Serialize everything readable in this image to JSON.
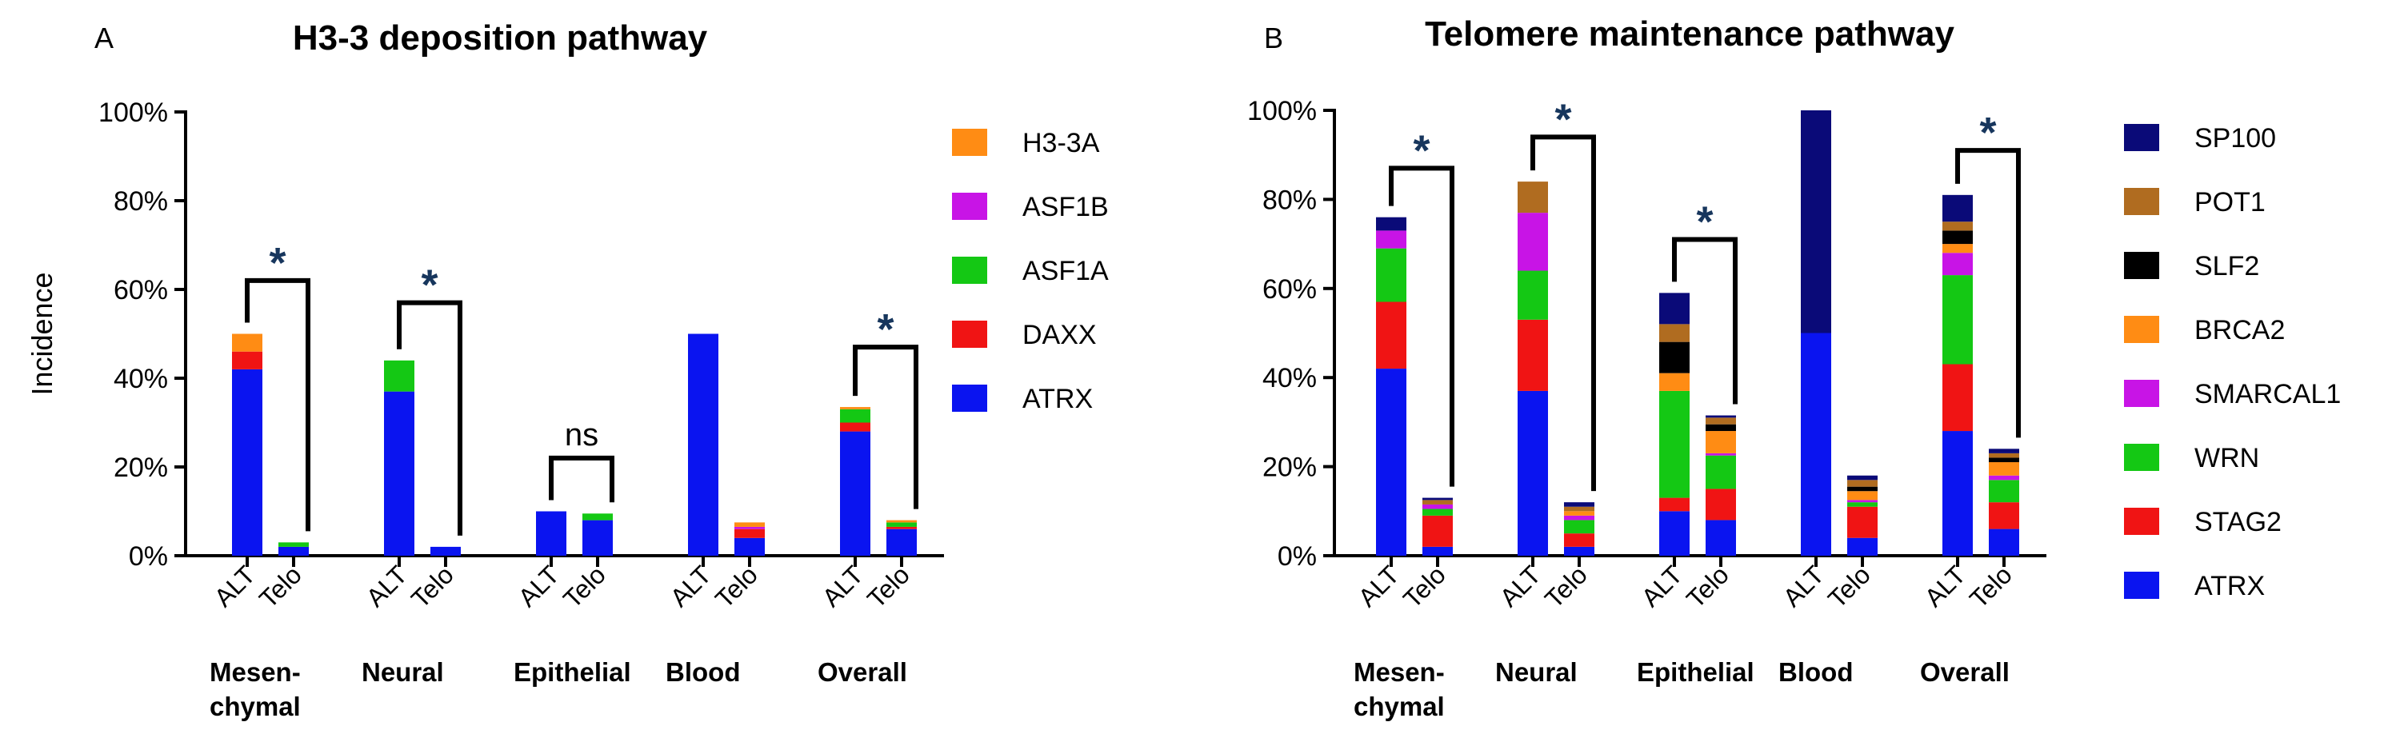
{
  "chart_data": [
    {
      "type": "bar",
      "stacked": true,
      "panel_letter": "A",
      "title": "H3-3 deposition pathway",
      "ylabel": "Incidence",
      "ylim": [
        0,
        100
      ],
      "yticks": [
        "0%",
        "20%",
        "40%",
        "60%",
        "80%",
        "100%"
      ],
      "bar_labels": [
        "ALT",
        "Telo"
      ],
      "groups": [
        "Mesen-",
        "Neural",
        "Epithelial",
        "Blood",
        "Overall"
      ],
      "group_second_line": [
        "chymal",
        "",
        "",
        "",
        ""
      ],
      "series": [
        {
          "name": "ATRX",
          "color": "#0a14f0",
          "values": [
            [
              42,
              2
            ],
            [
              37,
              2
            ],
            [
              10,
              8
            ],
            [
              50,
              4
            ],
            [
              28,
              6
            ]
          ]
        },
        {
          "name": "DAXX",
          "color": "#f01414",
          "values": [
            [
              4,
              0
            ],
            [
              0,
              0
            ],
            [
              0,
              0
            ],
            [
              0,
              2
            ],
            [
              2,
              0.5
            ]
          ]
        },
        {
          "name": "ASF1A",
          "color": "#14c814",
          "values": [
            [
              0,
              1
            ],
            [
              7,
              0
            ],
            [
              0,
              1.5
            ],
            [
              0,
              0
            ],
            [
              3,
              1
            ]
          ]
        },
        {
          "name": "ASF1B",
          "color": "#c814e6",
          "values": [
            [
              0,
              0
            ],
            [
              0,
              0
            ],
            [
              0,
              0
            ],
            [
              0,
              0.5
            ],
            [
              0,
              0
            ]
          ]
        },
        {
          "name": "H3-3A",
          "color": "#ff8c14",
          "values": [
            [
              4,
              0
            ],
            [
              0,
              0
            ],
            [
              0,
              0
            ],
            [
              0,
              1
            ],
            [
              0.5,
              0.5
            ]
          ]
        }
      ],
      "annotations": [
        {
          "group": 0,
          "label": "*",
          "top": 62
        },
        {
          "group": 1,
          "label": "*",
          "top": 57
        },
        {
          "group": 2,
          "label": "ns",
          "top": 22
        },
        {
          "group": 4,
          "label": "*",
          "top": 47
        }
      ]
    },
    {
      "type": "bar",
      "stacked": true,
      "panel_letter": "B",
      "title": "Telomere maintenance pathway",
      "ylabel": "",
      "ylim": [
        0,
        100
      ],
      "yticks": [
        "0%",
        "20%",
        "40%",
        "60%",
        "80%",
        "100%"
      ],
      "bar_labels": [
        "ALT",
        "Telo"
      ],
      "groups": [
        "Mesen-",
        "Neural",
        "Epithelial",
        "Blood",
        "Overall"
      ],
      "group_second_line": [
        "chymal",
        "",
        "",
        "",
        ""
      ],
      "series": [
        {
          "name": "ATRX",
          "color": "#0a14f0",
          "values": [
            [
              42,
              2
            ],
            [
              37,
              2
            ],
            [
              10,
              8
            ],
            [
              50,
              4
            ],
            [
              28,
              6
            ]
          ]
        },
        {
          "name": "STAG2",
          "color": "#f01414",
          "values": [
            [
              15,
              7
            ],
            [
              16,
              3
            ],
            [
              3,
              7
            ],
            [
              0,
              7
            ],
            [
              15,
              6
            ]
          ]
        },
        {
          "name": "WRN",
          "color": "#14c814",
          "values": [
            [
              12,
              1.5
            ],
            [
              11,
              3
            ],
            [
              24,
              7.5
            ],
            [
              0,
              1
            ],
            [
              20,
              5
            ]
          ]
        },
        {
          "name": "SMARCAL1",
          "color": "#c814e6",
          "values": [
            [
              4,
              1
            ],
            [
              13,
              1
            ],
            [
              0,
              0.5
            ],
            [
              0,
              0.5
            ],
            [
              5,
              1
            ]
          ]
        },
        {
          "name": "BRCA2",
          "color": "#ff8c14",
          "values": [
            [
              0,
              0
            ],
            [
              0,
              1
            ],
            [
              4,
              5
            ],
            [
              0,
              2
            ],
            [
              2,
              3
            ]
          ]
        },
        {
          "name": "SLF2",
          "color": "#000000",
          "values": [
            [
              0,
              0
            ],
            [
              0,
              0
            ],
            [
              7,
              1.5
            ],
            [
              0,
              1
            ],
            [
              3,
              1
            ]
          ]
        },
        {
          "name": "POT1",
          "color": "#b06c20",
          "values": [
            [
              0,
              1
            ],
            [
              7,
              1
            ],
            [
              4,
              1.5
            ],
            [
              0,
              1.5
            ],
            [
              2,
              1
            ]
          ]
        },
        {
          "name": "SP100",
          "color": "#0a0a78",
          "values": [
            [
              3,
              0.5
            ],
            [
              0,
              1
            ],
            [
              7,
              0.5
            ],
            [
              50,
              1
            ],
            [
              6,
              1
            ]
          ]
        }
      ],
      "annotations": [
        {
          "group": 0,
          "label": "*",
          "top": 87
        },
        {
          "group": 1,
          "label": "*",
          "top": 94
        },
        {
          "group": 2,
          "label": "*",
          "top": 71
        },
        {
          "group": 4,
          "label": "*",
          "top": 91
        }
      ]
    }
  ]
}
